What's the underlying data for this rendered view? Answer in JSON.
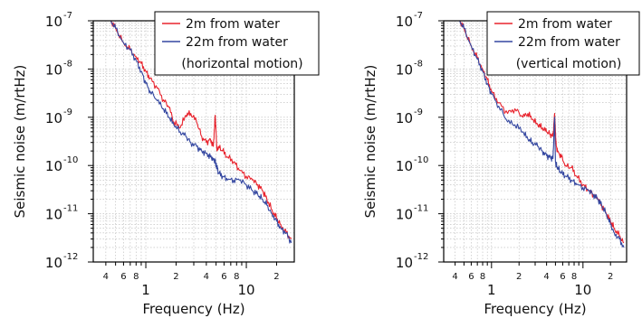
{
  "chart_data": [
    {
      "type": "line",
      "panel": "left",
      "xlabel": "Frequency (Hz)",
      "ylabel": "Seismic noise (m/rtHz)",
      "xscale": "log",
      "yscale": "log",
      "xlim": [
        0.3,
        30
      ],
      "ylim": [
        1e-12,
        1e-07
      ],
      "grid": true,
      "legend_position": "top-right",
      "legend_note": "(horizontal motion)",
      "x_major_ticks": [
        {
          "value": 1,
          "label": "1"
        },
        {
          "value": 10,
          "label": "10"
        }
      ],
      "x_minor_ticks": [
        {
          "value": 0.4,
          "label": "4"
        },
        {
          "value": 0.6,
          "label": "6"
        },
        {
          "value": 0.8,
          "label": "8"
        },
        {
          "value": 2,
          "label": "2"
        },
        {
          "value": 4,
          "label": "4"
        },
        {
          "value": 6,
          "label": "6"
        },
        {
          "value": 8,
          "label": "8"
        },
        {
          "value": 20,
          "label": "2"
        }
      ],
      "y_ticks": [
        {
          "value": 1e-12,
          "mant": "10",
          "exp": "-12"
        },
        {
          "value": 1e-11,
          "mant": "10",
          "exp": "-11"
        },
        {
          "value": 1e-10,
          "mant": "10",
          "exp": "-10"
        },
        {
          "value": 1e-09,
          "mant": "10",
          "exp": "-9"
        },
        {
          "value": 1e-08,
          "mant": "10",
          "exp": "-8"
        },
        {
          "value": 1e-07,
          "mant": "10",
          "exp": "-7"
        }
      ],
      "series": [
        {
          "name": "2m from water",
          "color": "#e8232d",
          "x": [
            0.45,
            0.5,
            0.6,
            0.7,
            0.8,
            0.9,
            1.0,
            1.1,
            1.3,
            1.5,
            1.7,
            1.9,
            2.2,
            2.5,
            2.8,
            3.2,
            3.6,
            4.0,
            4.4,
            4.7,
            4.9,
            5.0,
            5.1,
            5.3,
            5.8,
            6.5,
            7.5,
            8.5,
            10,
            11.5,
            13,
            14.5,
            16,
            18,
            20,
            22,
            25,
            28
          ],
          "y": [
            1e-07,
            7e-08,
            3.5e-08,
            2.5e-08,
            1.8e-08,
            1.3e-08,
            9e-09,
            6.5e-09,
            4e-09,
            2.3e-09,
            1.6e-09,
            8e-10,
            6e-10,
            1.1e-09,
            1.2e-09,
            8e-10,
            4e-10,
            3e-10,
            3.5e-10,
            2.5e-10,
            1.1e-09,
            5e-10,
            2e-10,
            2.5e-10,
            2e-10,
            1.5e-10,
            1.2e-10,
            8e-11,
            6e-11,
            5e-11,
            4e-11,
            3e-11,
            2e-11,
            1.2e-11,
            8e-12,
            6e-12,
            4e-12,
            3e-12
          ]
        },
        {
          "name": "22m from water",
          "color": "#3447a0",
          "x": [
            0.45,
            0.5,
            0.6,
            0.7,
            0.8,
            0.9,
            1.0,
            1.1,
            1.3,
            1.5,
            1.7,
            1.9,
            2.2,
            2.5,
            2.8,
            3.2,
            3.6,
            4.0,
            4.4,
            4.7,
            4.9,
            5.0,
            5.1,
            5.3,
            5.8,
            6.5,
            7.5,
            8.5,
            10,
            11.5,
            13,
            14.5,
            16,
            18,
            20,
            22,
            25,
            28
          ],
          "y": [
            1e-07,
            7e-08,
            3.5e-08,
            2.5e-08,
            1.5e-08,
            9e-09,
            5e-09,
            3.5e-09,
            2.2e-09,
            1.5e-09,
            1e-09,
            7e-10,
            5e-10,
            4e-10,
            3e-10,
            2.5e-10,
            2e-10,
            1.8e-10,
            1.5e-10,
            1.4e-10,
            1.2e-10,
            1e-10,
            9e-11,
            7e-11,
            6e-11,
            5e-11,
            5e-11,
            5e-11,
            4e-11,
            3e-11,
            2.5e-11,
            2e-11,
            1.5e-11,
            1e-11,
            7e-12,
            5e-12,
            4e-12,
            2.5e-12
          ]
        }
      ]
    },
    {
      "type": "line",
      "panel": "right",
      "xlabel": "Frequency (Hz)",
      "ylabel": "Seismic noise (m/rtHz)",
      "xscale": "log",
      "yscale": "log",
      "xlim": [
        0.3,
        30
      ],
      "ylim": [
        1e-12,
        1e-07
      ],
      "grid": true,
      "legend_position": "top-right",
      "legend_note": "(vertical motion)",
      "x_major_ticks": [
        {
          "value": 1,
          "label": "1"
        },
        {
          "value": 10,
          "label": "10"
        }
      ],
      "x_minor_ticks": [
        {
          "value": 0.4,
          "label": "4"
        },
        {
          "value": 0.6,
          "label": "6"
        },
        {
          "value": 0.8,
          "label": "8"
        },
        {
          "value": 2,
          "label": "2"
        },
        {
          "value": 4,
          "label": "4"
        },
        {
          "value": 6,
          "label": "6"
        },
        {
          "value": 8,
          "label": "8"
        },
        {
          "value": 20,
          "label": "2"
        }
      ],
      "y_ticks": [
        {
          "value": 1e-12,
          "mant": "10",
          "exp": "-12"
        },
        {
          "value": 1e-11,
          "mant": "10",
          "exp": "-11"
        },
        {
          "value": 1e-10,
          "mant": "10",
          "exp": "-10"
        },
        {
          "value": 1e-09,
          "mant": "10",
          "exp": "-9"
        },
        {
          "value": 1e-08,
          "mant": "10",
          "exp": "-8"
        },
        {
          "value": 1e-07,
          "mant": "10",
          "exp": "-7"
        }
      ],
      "series": [
        {
          "name": "2m from water",
          "color": "#e8232d",
          "x": [
            0.45,
            0.5,
            0.6,
            0.7,
            0.8,
            0.9,
            1.0,
            1.2,
            1.5,
            1.8,
            2.2,
            2.5,
            2.8,
            3.2,
            3.6,
            4.0,
            4.4,
            4.7,
            4.9,
            5.0,
            5.1,
            5.3,
            5.8,
            6.5,
            7.5,
            8.5,
            10,
            11.5,
            13,
            14.5,
            16,
            18,
            20,
            22,
            25,
            28
          ],
          "y": [
            1e-07,
            7e-08,
            3e-08,
            1.7e-08,
            1e-08,
            6e-09,
            3.5e-09,
            2e-09,
            1.2e-09,
            1.5e-09,
            1e-09,
            1.2e-09,
            9e-10,
            7e-10,
            6e-10,
            5e-10,
            4.5e-10,
            4e-10,
            1.2e-09,
            5e-10,
            2.5e-10,
            2e-10,
            1.5e-10,
            1e-10,
            9e-11,
            6e-11,
            4e-11,
            3e-11,
            2.5e-11,
            2e-11,
            1.5e-11,
            1e-11,
            7e-12,
            5e-12,
            3.5e-12,
            2.5e-12
          ]
        },
        {
          "name": "22m from water",
          "color": "#3447a0",
          "x": [
            0.45,
            0.5,
            0.6,
            0.7,
            0.8,
            0.9,
            1.0,
            1.2,
            1.5,
            1.8,
            2.2,
            2.5,
            2.8,
            3.2,
            3.6,
            4.0,
            4.4,
            4.7,
            4.9,
            5.0,
            5.1,
            5.3,
            5.8,
            6.5,
            7.5,
            8.5,
            10,
            11.5,
            13,
            14.5,
            16,
            18,
            20,
            22,
            25,
            28
          ],
          "y": [
            1e-07,
            7e-08,
            3e-08,
            1.6e-08,
            9e-09,
            5e-09,
            3e-09,
            1.7e-09,
            8e-10,
            7e-10,
            5e-10,
            3.5e-10,
            3e-10,
            2.5e-10,
            2e-10,
            1.6e-10,
            1.5e-10,
            1.4e-10,
            1e-09,
            1.2e-10,
            1e-10,
            9e-11,
            7e-11,
            6e-11,
            5e-11,
            4e-11,
            3.5e-11,
            3e-11,
            2.5e-11,
            2e-11,
            1.5e-11,
            1e-11,
            6e-12,
            4e-12,
            3e-12,
            2e-12
          ]
        }
      ]
    }
  ]
}
